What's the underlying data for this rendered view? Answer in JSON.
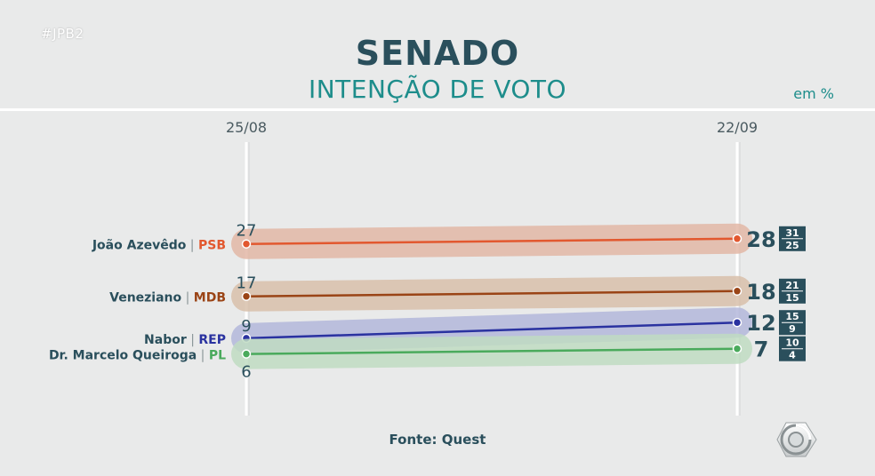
{
  "header": {
    "hashtag": "#JPB2",
    "title": "SENADO",
    "subtitle": "INTENÇÃO DE VOTO",
    "unit": "em %"
  },
  "footer": {
    "source": "Fonte: Quest"
  },
  "chart_data": {
    "type": "line",
    "x": [
      "25/08",
      "22/09"
    ],
    "series": [
      {
        "name": "João Azevêdo",
        "party": "PSB",
        "color": "#e2582f",
        "band": "#e3b8a6",
        "values": [
          27,
          28
        ],
        "range_end": {
          "high": 31,
          "low": 25
        }
      },
      {
        "name": "Veneziano",
        "party": "MDB",
        "color": "#9a4416",
        "band": "#d9c0ab",
        "values": [
          17,
          18
        ],
        "range_end": {
          "high": 21,
          "low": 15
        }
      },
      {
        "name": "Nabor",
        "party": "REP",
        "color": "#2a32a0",
        "band": "#b4b8db",
        "values": [
          9,
          12
        ],
        "range_end": {
          "high": 15,
          "low": 9
        }
      },
      {
        "name": "Dr. Marcelo Queiroga",
        "party": "PL",
        "color": "#4aaa5c",
        "band": "#c0dcc3",
        "values": [
          6,
          7
        ],
        "range_end": {
          "high": 10,
          "low": 4
        }
      }
    ]
  }
}
